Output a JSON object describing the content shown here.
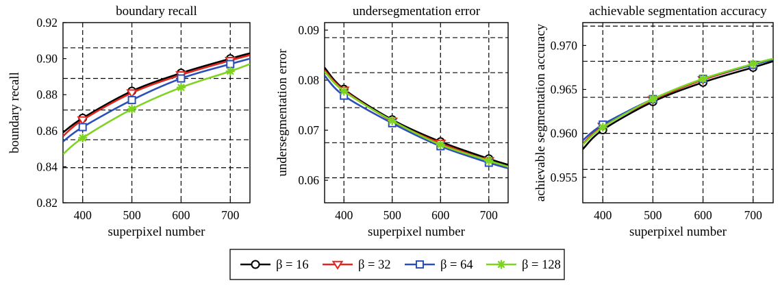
{
  "legend": {
    "items": [
      {
        "label": "β = 16",
        "color": "#000000",
        "marker": "circle"
      },
      {
        "label": "β = 32",
        "color": "#e0261f",
        "marker": "triangle-down"
      },
      {
        "label": "β = 64",
        "color": "#2b4fb8",
        "marker": "square"
      },
      {
        "label": "β = 128",
        "color": "#7ed321",
        "marker": "star"
      }
    ]
  },
  "chart_data": [
    {
      "type": "line",
      "title": "boundary recall",
      "xlabel": "superpixel number",
      "ylabel": "boundary recall",
      "xlim": [
        360,
        740
      ],
      "ylim": [
        0.82,
        0.92
      ],
      "xticks": [
        400,
        500,
        600,
        700
      ],
      "xtick_labels": [
        "400",
        "500",
        "600",
        "700"
      ],
      "yticks": [
        0.82,
        0.84,
        0.86,
        0.88,
        0.9,
        0.92
      ],
      "ytick_labels": [
        "0.82",
        "0.84",
        "0.86",
        "0.88",
        "0.90",
        "0.92"
      ],
      "grid_y": [
        0.8395,
        0.855,
        0.8715,
        0.889,
        0.906
      ],
      "x": [
        400,
        500,
        600,
        700
      ],
      "series": [
        {
          "name": "β = 16",
          "values": [
            0.867,
            0.882,
            0.892,
            0.9
          ],
          "curve": [
            [
              360,
              0.859
            ],
            [
              400,
              0.867
            ],
            [
              500,
              0.882
            ],
            [
              600,
              0.892
            ],
            [
              700,
              0.9
            ],
            [
              740,
              0.903
            ]
          ]
        },
        {
          "name": "β = 32",
          "values": [
            0.866,
            0.881,
            0.891,
            0.899
          ],
          "curve": [
            [
              360,
              0.857
            ],
            [
              400,
              0.866
            ],
            [
              500,
              0.881
            ],
            [
              600,
              0.891
            ],
            [
              700,
              0.899
            ],
            [
              740,
              0.902
            ]
          ]
        },
        {
          "name": "β = 64",
          "values": [
            0.862,
            0.877,
            0.889,
            0.897
          ],
          "curve": [
            [
              360,
              0.854
            ],
            [
              400,
              0.862
            ],
            [
              500,
              0.877
            ],
            [
              600,
              0.889
            ],
            [
              700,
              0.897
            ],
            [
              740,
              0.9
            ]
          ]
        },
        {
          "name": "β = 128",
          "values": [
            0.856,
            0.872,
            0.884,
            0.893
          ],
          "curve": [
            [
              360,
              0.847
            ],
            [
              400,
              0.856
            ],
            [
              500,
              0.872
            ],
            [
              600,
              0.884
            ],
            [
              700,
              0.893
            ],
            [
              740,
              0.897
            ]
          ]
        }
      ]
    },
    {
      "type": "line",
      "title": "undersegmentation error",
      "xlabel": "superpixel number",
      "ylabel": "undersegmentation error",
      "xlim": [
        360,
        740
      ],
      "ylim": [
        0.0555,
        0.0915
      ],
      "xticks": [
        400,
        500,
        600,
        700
      ],
      "xtick_labels": [
        "400",
        "500",
        "600",
        "700"
      ],
      "yticks": [
        0.06,
        0.07,
        0.08,
        0.09
      ],
      "ytick_labels": [
        "0.06",
        "0.07",
        "0.08",
        "0.09"
      ],
      "grid_y": [
        0.0605,
        0.0675,
        0.0745,
        0.0815,
        0.0885
      ],
      "x": [
        400,
        500,
        600,
        700
      ],
      "series": [
        {
          "name": "β = 16",
          "values": [
            0.0782,
            0.0721,
            0.0677,
            0.0643
          ],
          "curve": [
            [
              360,
              0.0825
            ],
            [
              400,
              0.0782
            ],
            [
              500,
              0.0721
            ],
            [
              600,
              0.0677
            ],
            [
              700,
              0.0643
            ],
            [
              740,
              0.0631
            ]
          ]
        },
        {
          "name": "β = 32",
          "values": [
            0.078,
            0.0718,
            0.0674,
            0.0639
          ],
          "curve": [
            [
              360,
              0.082
            ],
            [
              400,
              0.078
            ],
            [
              500,
              0.0718
            ],
            [
              600,
              0.0674
            ],
            [
              700,
              0.0639
            ],
            [
              740,
              0.0627
            ]
          ]
        },
        {
          "name": "β = 64",
          "values": [
            0.0769,
            0.0714,
            0.0668,
            0.0635
          ],
          "curve": [
            [
              360,
              0.0809
            ],
            [
              400,
              0.0769
            ],
            [
              500,
              0.0714
            ],
            [
              600,
              0.0668
            ],
            [
              700,
              0.0635
            ],
            [
              740,
              0.0624
            ]
          ]
        },
        {
          "name": "β = 128",
          "values": [
            0.0778,
            0.0719,
            0.0671,
            0.0639
          ],
          "curve": [
            [
              360,
              0.0817
            ],
            [
              400,
              0.0778
            ],
            [
              500,
              0.0719
            ],
            [
              600,
              0.0671
            ],
            [
              700,
              0.0639
            ],
            [
              740,
              0.0627
            ]
          ]
        }
      ]
    },
    {
      "type": "line",
      "title": "achievable segmentation accuracy",
      "xlabel": "superpixel number",
      "ylabel": "achievable segmentation accuracy",
      "xlim": [
        360,
        740
      ],
      "ylim": [
        0.9521,
        0.9726
      ],
      "xticks": [
        400,
        500,
        600,
        700
      ],
      "xtick_labels": [
        "400",
        "500",
        "600",
        "700"
      ],
      "yticks": [
        0.955,
        0.96,
        0.965,
        0.97
      ],
      "ytick_labels": [
        "0.955",
        "0.960",
        "0.965",
        "0.970"
      ],
      "grid_y": [
        0.9559,
        0.96,
        0.9641,
        0.9682,
        0.9722
      ],
      "x": [
        400,
        500,
        600,
        700
      ],
      "series": [
        {
          "name": "β = 16",
          "values": [
            0.9604,
            0.9636,
            0.9658,
            0.9675
          ],
          "curve": [
            [
              360,
              0.9582
            ],
            [
              400,
              0.9604
            ],
            [
              500,
              0.9636
            ],
            [
              600,
              0.9658
            ],
            [
              700,
              0.9675
            ],
            [
              740,
              0.9682
            ]
          ]
        },
        {
          "name": "β = 32",
          "values": [
            0.9608,
            0.9638,
            0.9661,
            0.9678
          ],
          "curve": [
            [
              360,
              0.9588
            ],
            [
              400,
              0.9608
            ],
            [
              500,
              0.9638
            ],
            [
              600,
              0.9661
            ],
            [
              700,
              0.9678
            ],
            [
              740,
              0.9684
            ]
          ]
        },
        {
          "name": "β = 64",
          "values": [
            0.961,
            0.9639,
            0.9662,
            0.9678
          ],
          "curve": [
            [
              360,
              0.9592
            ],
            [
              400,
              0.961
            ],
            [
              500,
              0.9639
            ],
            [
              600,
              0.9662
            ],
            [
              700,
              0.9678
            ],
            [
              740,
              0.9684
            ]
          ]
        },
        {
          "name": "β = 128",
          "values": [
            0.9607,
            0.9639,
            0.9662,
            0.9679
          ],
          "curve": [
            [
              360,
              0.9587
            ],
            [
              400,
              0.9607
            ],
            [
              500,
              0.9639
            ],
            [
              600,
              0.9662
            ],
            [
              700,
              0.9679
            ],
            [
              740,
              0.9685
            ]
          ]
        }
      ]
    }
  ]
}
